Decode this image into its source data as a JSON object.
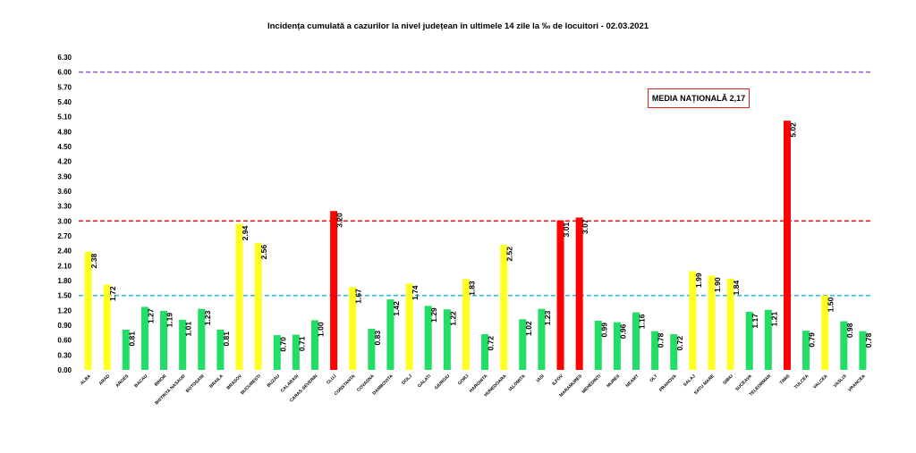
{
  "chart_data": {
    "type": "bar",
    "title": "Incidența cumulată a cazurilor la nivel județean în ultimele 14 zile la ‰ de locuitori - 02.03.2021",
    "annotation": "MEDIA NAȚIONALĂ 2,17",
    "ylim": [
      0,
      6.3
    ],
    "yticks": [
      "0.00",
      "0.30",
      "0.60",
      "0.90",
      "1.20",
      "1.50",
      "1.80",
      "2.10",
      "2.40",
      "2.70",
      "3.00",
      "3.30",
      "3.60",
      "3.90",
      "4.20",
      "4.50",
      "4.80",
      "5.10",
      "5.40",
      "5.70",
      "6.00",
      "6.30"
    ],
    "grid": false,
    "thresholds": [
      {
        "value": 6.0,
        "color": "#9966cc"
      },
      {
        "value": 3.0,
        "color": "#e02020"
      },
      {
        "value": 1.5,
        "color": "#33bbdd"
      }
    ],
    "colors": {
      "green": "#22dd66",
      "yellow": "#ffff22",
      "red": "#ff0000"
    },
    "categories": [
      "ALBA",
      "ARAD",
      "ARGES",
      "BACAU",
      "BIHOR",
      "BISTRITA NASAUD",
      "BOTOSANI",
      "BRAILA",
      "BRASOV",
      "BUCURESTI",
      "BUZAU",
      "CALARASI",
      "CARAS-SEVERIN",
      "CLUJ",
      "CONSTANTA",
      "COVASNA",
      "DAMBOVITA",
      "DOLJ",
      "GALATI",
      "GIURGIU",
      "GORJ",
      "HARGHITA",
      "HUNEDOARA",
      "IALOMITA",
      "IASI",
      "ILFOV",
      "MARAMURES",
      "MEHEDINTI",
      "MURES",
      "NEAMT",
      "OLT",
      "PRAHOVA",
      "SALAJ",
      "SATU MARE",
      "SIBIU",
      "SUCEAVA",
      "TELEORMAN",
      "TIMIS",
      "TULCEA",
      "VALCEA",
      "VASLUI",
      "VRANCEA"
    ],
    "values": [
      2.38,
      1.72,
      0.81,
      1.27,
      1.19,
      1.01,
      1.23,
      0.81,
      2.94,
      2.56,
      0.7,
      0.71,
      1.0,
      3.2,
      1.67,
      0.83,
      1.42,
      1.74,
      1.29,
      1.22,
      1.83,
      0.72,
      2.52,
      1.02,
      1.23,
      3.01,
      3.07,
      0.99,
      0.96,
      1.16,
      0.78,
      0.72,
      1.99,
      1.9,
      1.84,
      1.17,
      1.21,
      5.02,
      0.79,
      1.5,
      0.98,
      0.78
    ],
    "labels": [
      "2.38",
      "1.72",
      "0.81",
      "1.27",
      "1.19",
      "1.01",
      "1.23",
      "0.81",
      "2.94",
      "2.56",
      "0.70",
      "0.71",
      "1.00",
      "3.20",
      "1.67",
      "0.83",
      "1.42",
      "1.74",
      "1.29",
      "1.22",
      "1.83",
      "0.72",
      "2.52",
      "1.02",
      "1.23",
      "3.01",
      "3.07",
      "0.99",
      "0.96",
      "1.16",
      "0.78",
      "0.72",
      "1.99",
      "1.90",
      "1.84",
      "1.17",
      "1.21",
      "5.02",
      "0.79",
      "1.50",
      "0.98",
      "0.78"
    ]
  }
}
